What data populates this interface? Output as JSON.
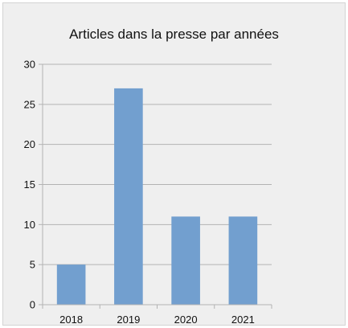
{
  "chart_data": {
    "type": "bar",
    "title": "Articles dans la presse par années",
    "xlabel": "",
    "ylabel": "",
    "categories": [
      "2018",
      "2019",
      "2020",
      "2021"
    ],
    "values": [
      5,
      27,
      11,
      11
    ],
    "ylim": [
      0,
      30
    ],
    "yticks": [
      "0",
      "5",
      "10",
      "15",
      "20",
      "25",
      "30"
    ],
    "grid": true,
    "legend": "none",
    "bar_color": "#729fcf",
    "background": "#efefef"
  }
}
